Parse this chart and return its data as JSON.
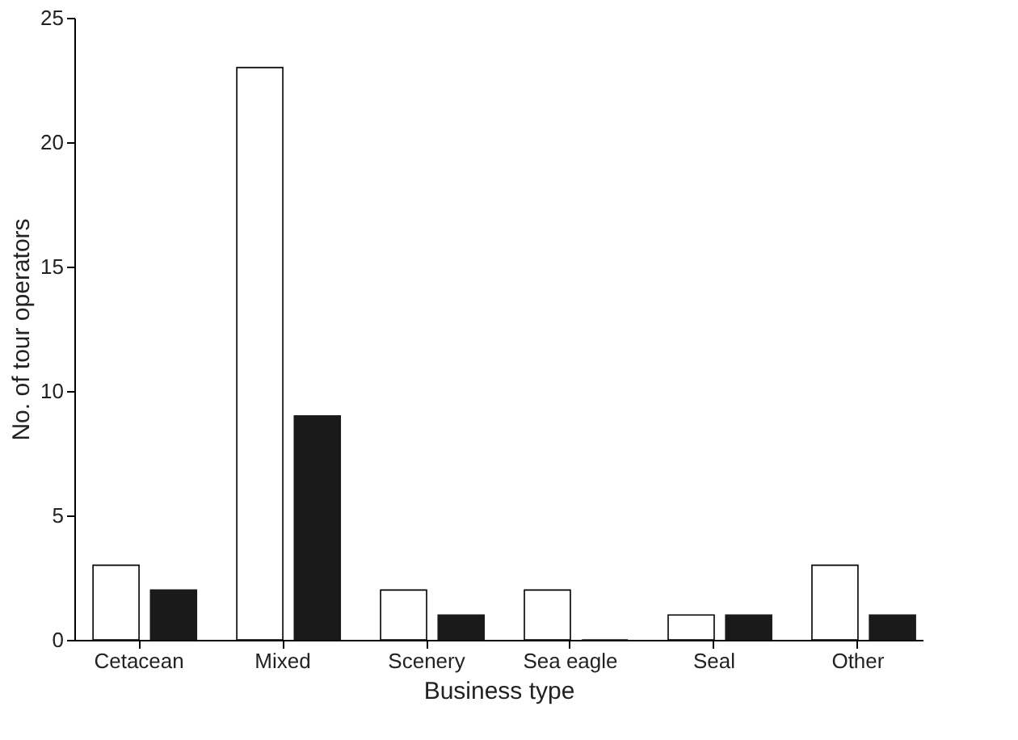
{
  "chart_data": {
    "type": "bar",
    "xlabel": "Business type",
    "ylabel": "No. of tour operators",
    "categories": [
      "Cetacean",
      "Mixed",
      "Scenery",
      "Sea eagle",
      "Seal",
      "Other"
    ],
    "series": [
      {
        "color": "#ffffff",
        "values": [
          3,
          23,
          2,
          2,
          1,
          3
        ]
      },
      {
        "color": "#1a1a1a",
        "values": [
          2,
          9,
          1,
          0,
          1,
          1
        ]
      }
    ],
    "ylim": [
      0,
      25
    ],
    "yticks": [
      0,
      5,
      10,
      15,
      20,
      25
    ],
    "grid": false,
    "legend": false
  }
}
